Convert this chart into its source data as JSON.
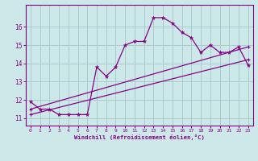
{
  "xlabel": "Windchill (Refroidissement éolien,°C)",
  "ylabel": "",
  "background_color": "#cce8e8",
  "line_color": "#880088",
  "xlim": [
    -0.5,
    23.5
  ],
  "ylim": [
    10.6,
    17.2
  ],
  "xticks": [
    0,
    1,
    2,
    3,
    4,
    5,
    6,
    7,
    8,
    9,
    10,
    11,
    12,
    13,
    14,
    15,
    16,
    17,
    18,
    19,
    20,
    21,
    22,
    23
  ],
  "yticks": [
    11,
    12,
    13,
    14,
    15,
    16
  ],
  "grid_color": "#aacccc",
  "series1_x": [
    0,
    1,
    2,
    3,
    4,
    5,
    6,
    7,
    8,
    9,
    10,
    11,
    12,
    13,
    14,
    15,
    16,
    17,
    18,
    19,
    20,
    21,
    22,
    23
  ],
  "series1_y": [
    11.9,
    11.5,
    11.5,
    11.2,
    11.2,
    11.2,
    11.2,
    13.8,
    13.3,
    13.8,
    15.0,
    15.2,
    15.2,
    16.5,
    16.5,
    16.2,
    15.7,
    15.4,
    14.6,
    15.0,
    14.6,
    14.6,
    14.9,
    13.9
  ],
  "series2_x": [
    0,
    23
  ],
  "series2_y": [
    11.2,
    14.2
  ],
  "series3_x": [
    0,
    23
  ],
  "series3_y": [
    11.5,
    14.9
  ]
}
